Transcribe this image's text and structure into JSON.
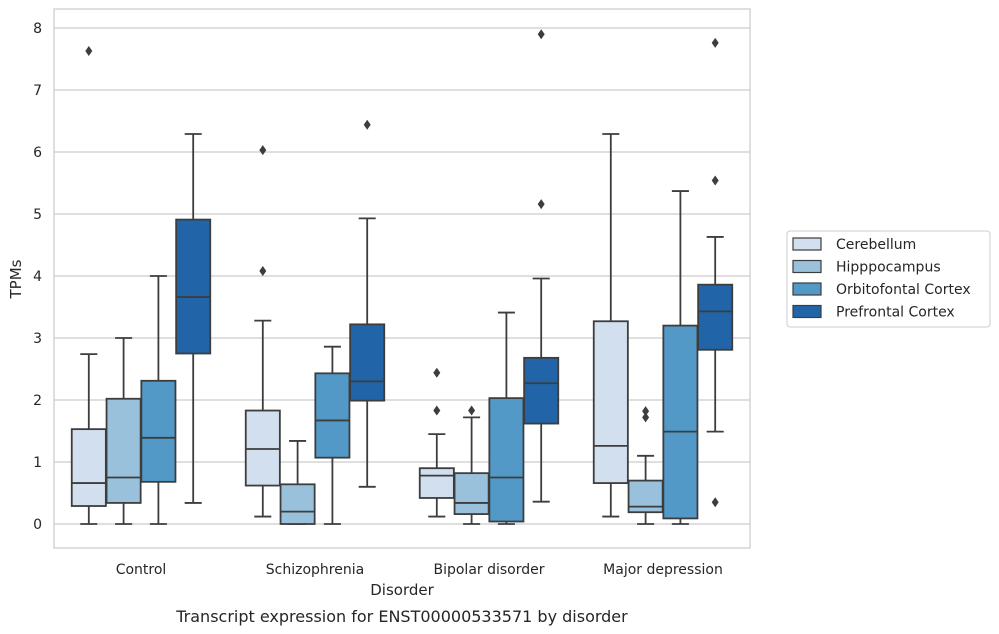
{
  "chart_data": {
    "type": "box",
    "caption": "Transcript expression for ENST00000533571 by disorder",
    "xlabel": "Disorder",
    "ylabel": "TPMs",
    "ylim": [
      -0.4,
      8.3
    ],
    "yticks": [
      "0",
      "1",
      "2",
      "3",
      "4",
      "5",
      "6",
      "7",
      "8"
    ],
    "grid": true,
    "legend_position": "right",
    "categories": [
      "Control",
      "Schizophrenia",
      "Bipolar disorder",
      "Major depression"
    ],
    "series": [
      {
        "name": "Cerebellum",
        "color": "#d1dfef",
        "boxes": [
          {
            "whislo": 0.0,
            "q1": 0.29,
            "med": 0.66,
            "q3": 1.53,
            "whishi": 2.74,
            "fliers": [
              7.63
            ]
          },
          {
            "whislo": 0.12,
            "q1": 0.62,
            "med": 1.21,
            "q3": 1.83,
            "whishi": 3.28,
            "fliers": [
              4.08,
              6.03
            ]
          },
          {
            "whislo": 0.12,
            "q1": 0.42,
            "med": 0.78,
            "q3": 0.9,
            "whishi": 1.45,
            "fliers": [
              1.83,
              2.44
            ]
          },
          {
            "whislo": 0.12,
            "q1": 0.66,
            "med": 1.26,
            "q3": 3.27,
            "whishi": 6.29,
            "fliers": []
          }
        ]
      },
      {
        "name": "Hipppocampus",
        "color": "#9ac1dc",
        "boxes": [
          {
            "whislo": 0.0,
            "q1": 0.34,
            "med": 0.75,
            "q3": 2.02,
            "whishi": 3.0,
            "fliers": []
          },
          {
            "whislo": 0.0,
            "q1": 0.0,
            "med": 0.2,
            "q3": 0.64,
            "whishi": 1.34,
            "fliers": []
          },
          {
            "whislo": 0.0,
            "q1": 0.16,
            "med": 0.34,
            "q3": 0.82,
            "whishi": 1.72,
            "fliers": [
              1.83
            ]
          },
          {
            "whislo": 0.0,
            "q1": 0.19,
            "med": 0.28,
            "q3": 0.7,
            "whishi": 1.1,
            "fliers": [
              1.72,
              1.82
            ]
          }
        ]
      },
      {
        "name": "Orbitofontal Cortex",
        "color": "#5299c8",
        "boxes": [
          {
            "whislo": 0.0,
            "q1": 0.68,
            "med": 1.39,
            "q3": 2.31,
            "whishi": 4.0,
            "fliers": []
          },
          {
            "whislo": 0.0,
            "q1": 1.07,
            "med": 1.67,
            "q3": 2.43,
            "whishi": 2.86,
            "fliers": []
          },
          {
            "whislo": 0.0,
            "q1": 0.04,
            "med": 0.75,
            "q3": 2.03,
            "whishi": 3.41,
            "fliers": []
          },
          {
            "whislo": 0.0,
            "q1": 0.09,
            "med": 1.49,
            "q3": 3.2,
            "whishi": 5.37,
            "fliers": []
          }
        ]
      },
      {
        "name": "Prefrontal Cortex",
        "color": "#2165a8",
        "boxes": [
          {
            "whislo": 0.34,
            "q1": 2.75,
            "med": 3.66,
            "q3": 4.91,
            "whishi": 6.29,
            "fliers": []
          },
          {
            "whislo": 0.6,
            "q1": 1.99,
            "med": 2.3,
            "q3": 3.22,
            "whishi": 4.93,
            "fliers": [
              6.44
            ]
          },
          {
            "whislo": 0.36,
            "q1": 1.62,
            "med": 2.27,
            "q3": 2.68,
            "whishi": 3.96,
            "fliers": [
              5.16,
              7.9
            ]
          },
          {
            "whislo": 1.49,
            "q1": 2.81,
            "med": 3.43,
            "q3": 3.86,
            "whishi": 4.63,
            "fliers": [
              0.35,
              5.54,
              7.76
            ]
          }
        ]
      }
    ]
  }
}
